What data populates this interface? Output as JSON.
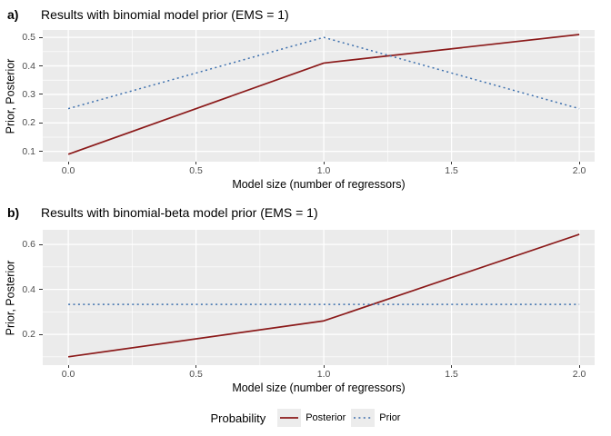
{
  "figure": {
    "background": "#FFFFFF",
    "panel_background": "#EBEBEB",
    "gridline_color": "#FFFFFF",
    "tick_color": "#333333",
    "tick_label_color": "#4D4D4D",
    "text_color": "#000000"
  },
  "legend": {
    "title": "Probability",
    "key_background": "#ECECEC",
    "items": [
      {
        "label": "Posterior",
        "style": "solid",
        "color": "#8B1A1A"
      },
      {
        "label": "Prior",
        "style": "dotted",
        "color": "#3C6FAD"
      }
    ]
  },
  "chart_data": [
    {
      "type": "line",
      "tag": "a)",
      "title": "Results with binomial model prior (EMS = 1)",
      "xlabel": "Model size (number of regressors)",
      "ylabel": "Prior, Posterior",
      "x": [
        0,
        1,
        2
      ],
      "series": [
        {
          "name": "Posterior",
          "values": [
            0.09,
            0.41,
            0.51
          ],
          "style": "solid",
          "color": "#8B1A1A"
        },
        {
          "name": "Prior",
          "values": [
            0.25,
            0.5,
            0.25
          ],
          "style": "dotted",
          "color": "#3C6FAD"
        }
      ],
      "xticks": [
        0.0,
        0.5,
        1.0,
        1.5,
        2.0
      ],
      "xtick_labels": [
        "0.0",
        "0.5",
        "1.0",
        "1.5",
        "2.0"
      ],
      "yticks": [
        0.1,
        0.2,
        0.3,
        0.4,
        0.5
      ],
      "ytick_labels": [
        "0.1",
        "0.2",
        "0.3",
        "0.4",
        "0.5"
      ],
      "x_minor": [
        0.25,
        0.75,
        1.25,
        1.75
      ],
      "y_minor": [
        0.15,
        0.25,
        0.35,
        0.45
      ],
      "xlim": [
        -0.1,
        2.06
      ],
      "ylim": [
        0.064,
        0.526
      ],
      "grid": true,
      "legend_position": "bottom"
    },
    {
      "type": "line",
      "tag": "b)",
      "title": "Results with binomial-beta model prior (EMS = 1)",
      "xlabel": "Model size (number of regressors)",
      "ylabel": "Prior, Posterior",
      "x": [
        0,
        1,
        2
      ],
      "series": [
        {
          "name": "Posterior",
          "values": [
            0.1,
            0.26,
            0.645
          ],
          "style": "solid",
          "color": "#8B1A1A"
        },
        {
          "name": "Prior",
          "values": [
            0.333,
            0.333,
            0.333
          ],
          "style": "dotted",
          "color": "#3C6FAD"
        }
      ],
      "xticks": [
        0.0,
        0.5,
        1.0,
        1.5,
        2.0
      ],
      "xtick_labels": [
        "0.0",
        "0.5",
        "1.0",
        "1.5",
        "2.0"
      ],
      "yticks": [
        0.2,
        0.4,
        0.6
      ],
      "ytick_labels": [
        "0.2",
        "0.4",
        "0.6"
      ],
      "x_minor": [
        0.25,
        0.75,
        1.25,
        1.75
      ],
      "y_minor": [
        0.1,
        0.3,
        0.5
      ],
      "xlim": [
        -0.1,
        2.06
      ],
      "ylim": [
        0.063,
        0.665
      ],
      "grid": true,
      "legend_position": "bottom"
    }
  ]
}
